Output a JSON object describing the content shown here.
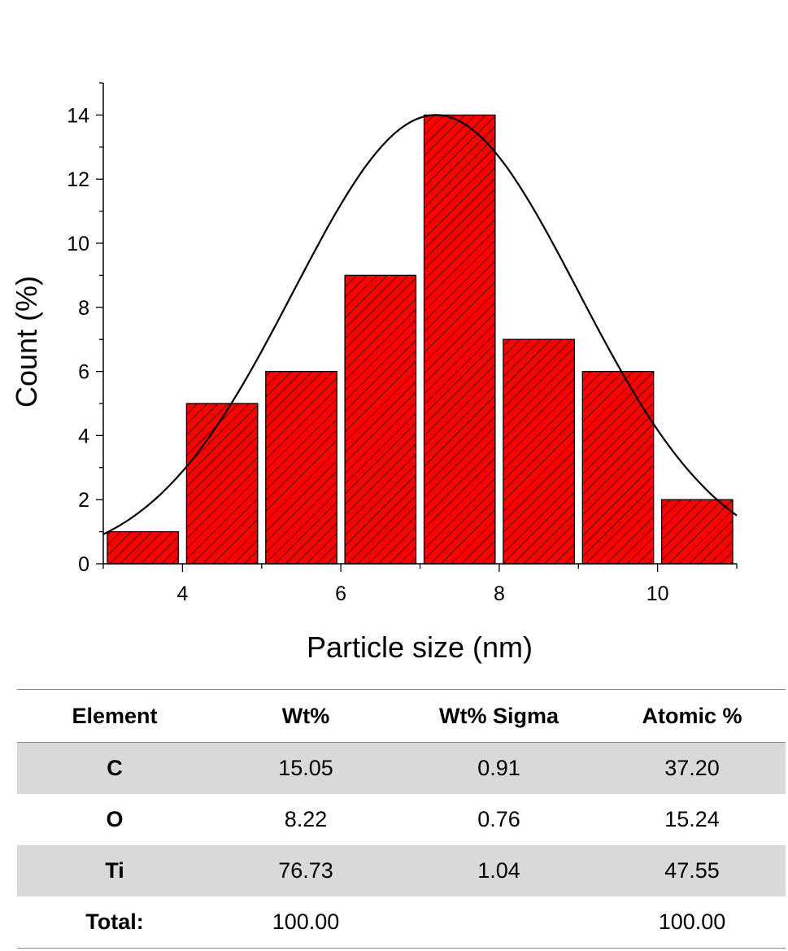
{
  "chart_data": {
    "type": "bar",
    "xlabel": "Particle size (nm)",
    "ylabel": "Count (%)",
    "xlim": [
      3,
      11
    ],
    "ylim": [
      0,
      15
    ],
    "xticks": [
      4,
      6,
      8,
      10
    ],
    "yticks": [
      0,
      2,
      4,
      6,
      8,
      10,
      12,
      14
    ],
    "bins": [
      {
        "start": 3,
        "end": 4,
        "value": 1
      },
      {
        "start": 4,
        "end": 5,
        "value": 5
      },
      {
        "start": 5,
        "end": 6,
        "value": 6
      },
      {
        "start": 6,
        "end": 7,
        "value": 9
      },
      {
        "start": 7,
        "end": 8,
        "value": 14
      },
      {
        "start": 8,
        "end": 9,
        "value": 7
      },
      {
        "start": 9,
        "end": 10,
        "value": 6
      },
      {
        "start": 10,
        "end": 11,
        "value": 2
      }
    ],
    "fit_curve": {
      "type": "gaussian",
      "center": 7.2,
      "sigma": 1.8,
      "peak": 14
    },
    "bar_color": "#ff0000",
    "bar_hatch": "diagonal",
    "grid": false
  },
  "table": {
    "headers": [
      "Element",
      "Wt%",
      "Wt% Sigma",
      "Atomic %"
    ],
    "rows": [
      {
        "element": "C",
        "wt": "15.05",
        "sigma": "0.91",
        "atomic": "37.20"
      },
      {
        "element": "O",
        "wt": "8.22",
        "sigma": "0.76",
        "atomic": "15.24"
      },
      {
        "element": "Ti",
        "wt": "76.73",
        "sigma": "1.04",
        "atomic": "47.55"
      },
      {
        "element": "Total:",
        "wt": "100.00",
        "sigma": "",
        "atomic": "100.00"
      }
    ],
    "shaded_color": "#d9d9d9"
  }
}
